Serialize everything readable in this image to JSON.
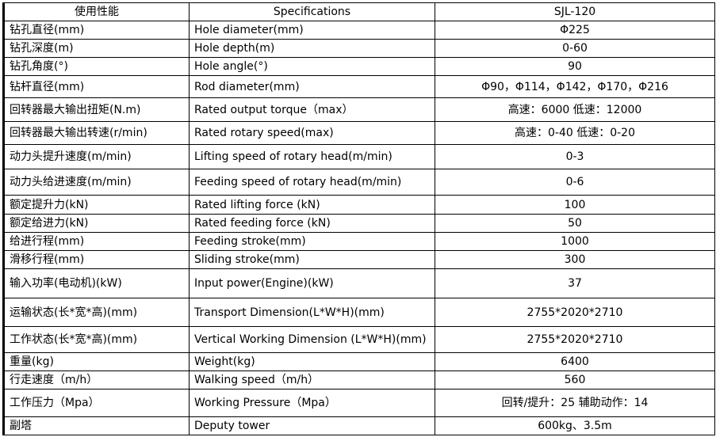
{
  "header": {
    "col1": "使用性能",
    "col2": "Specifications",
    "col3": "SJL-120"
  },
  "rows": [
    {
      "cn": "钻孔直径(mm)",
      "en": "Hole diameter(mm)",
      "value": "Φ225"
    },
    {
      "cn": "钻孔深度(m)",
      "en": "Hole depth(m)",
      "value": "0-60"
    },
    {
      "cn": "钻孔角度(°)",
      "en": "Hole angle(°)",
      "value": "90"
    },
    {
      "cn": "钻杆直径(mm)",
      "en": "Rod diameter(mm)",
      "value": "Φ90，Φ114，Φ142，Φ170，Φ216"
    },
    {
      "cn": "回转器最大输出扭矩(N.m)",
      "en": "Rated output torque（max）",
      "value": "高速：6000    低速：12000"
    },
    {
      "cn": "回转器最大输出转速(r/min)",
      "en": "Rated rotary speed(max)",
      "value": "高速：0-40    低速：0-20"
    },
    {
      "cn": "动力头提升速度(m/min)",
      "en": "Lifting speed of rotary head(m/min)",
      "value": "0-3"
    },
    {
      "cn": "动力头给进速度(m/min)",
      "en": "Feeding speed of rotary head(m/min)",
      "value": "0-6"
    },
    {
      "cn": "额定提升力(kN)",
      "en": "Rated lifting force (kN)",
      "value": "100"
    },
    {
      "cn": "额定给进力(kN)",
      "en": "Rated feeding force (kN)",
      "value": "50"
    },
    {
      "cn": "给进行程(mm)",
      "en": "Feeding stroke(mm)",
      "value": "1000"
    },
    {
      "cn": "滑移行程(mm)",
      "en": "Sliding stroke(mm)",
      "value": "300"
    },
    {
      "cn": "输入功率(电动机)(kW)",
      "en": "Input power(Engine)(kW)",
      "value": "37"
    },
    {
      "cn": "运输状态(长*宽*高)(mm)",
      "en": "Transport Dimension(L*W*H)(mm)",
      "value": "2755*2020*2710"
    },
    {
      "cn": "工作状态(长*宽*高)(mm)",
      "en": "Vertical Working Dimension (L*W*H)(mm)",
      "value": "2755*2020*2710"
    },
    {
      "cn": "重量(kg)",
      "en": "Weight(kg)",
      "value": "6400"
    },
    {
      "cn": "行走速度（m/h）",
      "en": "Walking speed（m/h）",
      "value": "560"
    },
    {
      "cn": "工作压力（Mpa）",
      "en": "Working Pressure（Mpa）",
      "value": "回转/提升：25    辅助动作：14"
    },
    {
      "cn": "副塔",
      "en": "Deputy tower",
      "value": "600kg、3.5m"
    }
  ]
}
